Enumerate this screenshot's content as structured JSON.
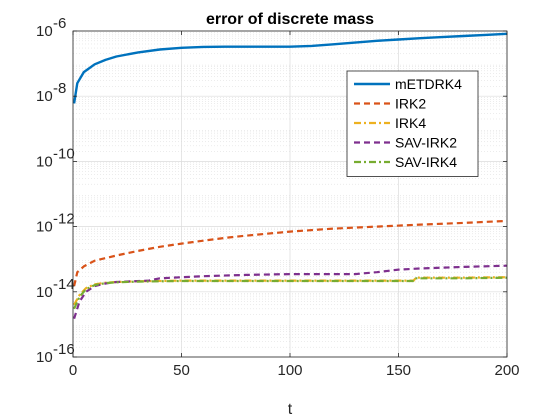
{
  "chart_data": {
    "type": "line",
    "title": "error of discrete mass",
    "xlabel": "t",
    "ylabel": "",
    "xlim": [
      0,
      200
    ],
    "ylim": [
      1e-16,
      1e-06
    ],
    "y_scale": "log",
    "grid": true,
    "minor_grid": true,
    "legend_position": "top-right",
    "x_ticks": [
      {
        "value": 0,
        "label": "0"
      },
      {
        "value": 50,
        "label": "50"
      },
      {
        "value": 100,
        "label": "100"
      },
      {
        "value": 150,
        "label": "150"
      },
      {
        "value": 200,
        "label": "200"
      }
    ],
    "y_ticks": [
      {
        "value": -16,
        "base": "10",
        "exp": "-16"
      },
      {
        "value": -14,
        "base": "10",
        "exp": "-14"
      },
      {
        "value": -12,
        "base": "10",
        "exp": "-12"
      },
      {
        "value": -10,
        "base": "10",
        "exp": "-10"
      },
      {
        "value": -8,
        "base": "10",
        "exp": "-8"
      },
      {
        "value": -6,
        "base": "10",
        "exp": "-6"
      }
    ],
    "series": [
      {
        "name": "mETDRK4",
        "color": "#0072BD",
        "dash": "solid",
        "x": [
          0.5,
          2,
          5,
          10,
          15,
          20,
          30,
          40,
          50,
          60,
          70,
          80,
          90,
          100,
          110,
          120,
          130,
          140,
          150,
          160,
          170,
          180,
          190,
          200
        ],
        "y": [
          6e-09,
          2.5e-08,
          5.5e-08,
          9.5e-08,
          1.3e-07,
          1.65e-07,
          2.2e-07,
          2.7e-07,
          3.05e-07,
          3.25e-07,
          3.3e-07,
          3.3e-07,
          3.3e-07,
          3.3e-07,
          3.5e-07,
          3.9e-07,
          4.4e-07,
          5e-07,
          5.5e-07,
          6e-07,
          6.5e-07,
          7e-07,
          7.6e-07,
          8.2e-07
        ]
      },
      {
        "name": "IRK2",
        "color": "#D95319",
        "dash": "dashed",
        "x": [
          0.5,
          2,
          5,
          10,
          20,
          30,
          40,
          50,
          60,
          70,
          80,
          100,
          120,
          140,
          160,
          180,
          200
        ],
        "y": [
          1.5e-14,
          4e-14,
          6e-14,
          9e-14,
          1.3e-13,
          1.8e-13,
          2.4e-13,
          3e-13,
          3.7e-13,
          4.5e-13,
          5.3e-13,
          7e-13,
          8.7e-13,
          1e-12,
          1.15e-12,
          1.3e-12,
          1.5e-12
        ]
      },
      {
        "name": "IRK4",
        "color": "#EDB120",
        "dash": "dashdot",
        "x": [
          0.5,
          3,
          6,
          10,
          15,
          20,
          30,
          50,
          80,
          100,
          120,
          157,
          158,
          180,
          200
        ],
        "y": [
          4e-15,
          8e-15,
          1.3e-14,
          1.7e-14,
          1.9e-14,
          2e-14,
          2.1e-14,
          2.2e-14,
          2.2e-14,
          2.2e-14,
          2.2e-14,
          2.2e-14,
          2.7e-14,
          2.7e-14,
          2.8e-14
        ]
      },
      {
        "name": "SAV-IRK2",
        "color": "#7E2F8E",
        "dash": "dashed",
        "x": [
          0.5,
          3,
          6,
          10,
          15,
          20,
          35,
          40,
          60,
          80,
          100,
          120,
          130,
          140,
          150,
          160,
          180,
          200
        ],
        "y": [
          1.5e-15,
          5e-15,
          1e-14,
          1.5e-14,
          1.8e-14,
          2e-14,
          2.2e-14,
          2.6e-14,
          3e-14,
          3.3e-14,
          3.5e-14,
          3.5e-14,
          3.5e-14,
          4e-14,
          4.8e-14,
          5.2e-14,
          5.8e-14,
          6.3e-14
        ]
      },
      {
        "name": "SAV-IRK4",
        "color": "#77AC30",
        "dash": "dashdot",
        "x": [
          0.5,
          3,
          6,
          10,
          15,
          20,
          30,
          50,
          80,
          100,
          120,
          157,
          158,
          180,
          200
        ],
        "y": [
          3e-15,
          7e-15,
          1.2e-14,
          1.6e-14,
          1.85e-14,
          1.95e-14,
          2.05e-14,
          2.15e-14,
          2.15e-14,
          2.15e-14,
          2.15e-14,
          2.15e-14,
          2.6e-14,
          2.6e-14,
          2.7e-14
        ]
      }
    ]
  }
}
